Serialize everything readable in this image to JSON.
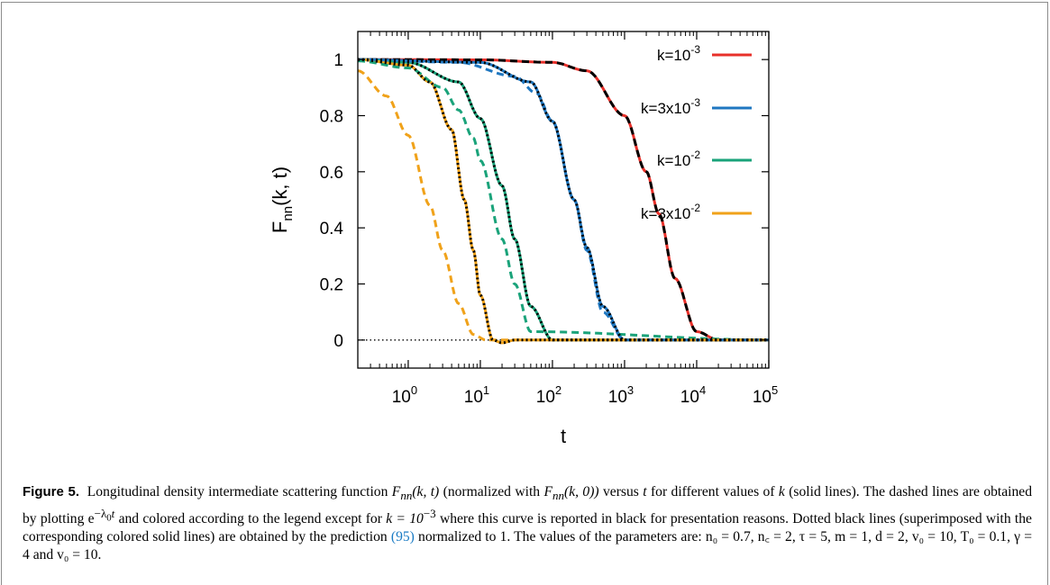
{
  "figure": {
    "label": "Figure 5.",
    "caption": {
      "s1": "Longitudinal density intermediate scattering function",
      "f1": "F",
      "f1sub": "nn",
      "f1args": "(k, t)",
      "s2": "(normalized with",
      "f2": "F",
      "f2sub": "nn",
      "f2args": "(k, 0))",
      "s3": "versus",
      "t": "t",
      "s4": "for different values of",
      "k": "k",
      "s5": "(solid lines). The dashed lines are obtained by plotting e",
      "expsup": "−λ",
      "expsub": "0",
      "expt": "t",
      "s6": "and colored according to the legend except for",
      "keq": "k = 10",
      "keqsup": "−3",
      "s7": "where this curve is reported in black for presentation reasons. Dotted black lines (superimposed with the corresponding colored solid lines) are obtained by the prediction",
      "ref": "(95)",
      "s8": "normalized to 1. The values of the parameters are:",
      "params": "n₀ = 0.7, n꜀ = 2, τ = 5, m = 1, d = 2, v₀ = 10, T₀ = 0.1, γ = 4 and v₀ = 10."
    }
  },
  "chart_data": {
    "type": "line",
    "xlabel": "t",
    "ylabel": "F",
    "ylabel_sub": "nn",
    "ylabel_args": "(k, t)",
    "x_scale": "log",
    "xlim": [
      0.2,
      100000
    ],
    "ylim": [
      -0.1,
      1.1
    ],
    "x_ticks": [
      {
        "value": 1,
        "base": "10",
        "exp": "0"
      },
      {
        "value": 10,
        "base": "10",
        "exp": "1"
      },
      {
        "value": 100,
        "base": "10",
        "exp": "2"
      },
      {
        "value": 1000,
        "base": "10",
        "exp": "3"
      },
      {
        "value": 10000,
        "base": "10",
        "exp": "4"
      },
      {
        "value": 100000,
        "base": "10",
        "exp": "5"
      }
    ],
    "y_ticks": [
      {
        "value": 0,
        "label": "0"
      },
      {
        "value": 0.2,
        "label": "0.2"
      },
      {
        "value": 0.4,
        "label": "0.4"
      },
      {
        "value": 0.6,
        "label": "0.6"
      },
      {
        "value": 0.8,
        "label": "0.8"
      },
      {
        "value": 1,
        "label": "1"
      }
    ],
    "legend_position": "top-right",
    "zero_line": {
      "y": 0,
      "style": "dotted",
      "color": "#000000"
    },
    "series": [
      {
        "name": "k=10",
        "name_sup": "-3",
        "color": "#e8302a",
        "dashed_color": "#000000",
        "x": [
          0.2,
          10,
          100,
          300,
          1000,
          2000,
          3000,
          5000,
          10000,
          20000,
          100000
        ],
        "y": [
          1.0,
          0.999,
          0.99,
          0.96,
          0.8,
          0.6,
          0.45,
          0.22,
          0.03,
          0.0,
          0.0
        ]
      },
      {
        "name": "k=3x10",
        "name_sup": "-3",
        "color": "#1f77c0",
        "dashed_color": "#1f77c0",
        "x": [
          0.2,
          10,
          50,
          100,
          200,
          300,
          500,
          1000,
          2000,
          100000
        ],
        "y": [
          1.0,
          0.99,
          0.92,
          0.78,
          0.5,
          0.33,
          0.12,
          0.0,
          0.0,
          0.0
        ]
      },
      {
        "name": "k=10",
        "name_sup": "-2",
        "color": "#1aa37a",
        "dashed_color": "#1aa37a",
        "x": [
          0.2,
          1,
          5,
          10,
          20,
          30,
          50,
          100,
          200,
          100000
        ],
        "y": [
          1.0,
          0.99,
          0.92,
          0.79,
          0.55,
          0.36,
          0.12,
          0.0,
          0.0,
          0.0
        ]
      },
      {
        "name": "k=3x10",
        "name_sup": "-2",
        "color": "#f0a21a",
        "dashed_color": "#f0a21a",
        "x": [
          0.2,
          1,
          2,
          4,
          6,
          8,
          10,
          15,
          20,
          30,
          100000
        ],
        "y": [
          1.0,
          0.98,
          0.92,
          0.75,
          0.5,
          0.32,
          0.16,
          0.0,
          -0.01,
          0.0,
          0.0
        ]
      }
    ],
    "dashed_curves": [
      {
        "for": "k=10^-3",
        "x": [
          0.2,
          10,
          100,
          300,
          1000,
          2000,
          3000,
          5000,
          10000,
          20000,
          100000
        ],
        "y": [
          1.0,
          0.999,
          0.99,
          0.96,
          0.8,
          0.6,
          0.45,
          0.22,
          0.03,
          0.0,
          0.0
        ]
      },
      {
        "for": "k=3x10^-3",
        "x": [
          0.2,
          5,
          30,
          60,
          100,
          200,
          300,
          500,
          1000,
          100000
        ],
        "y": [
          1.0,
          0.99,
          0.94,
          0.88,
          0.78,
          0.5,
          0.32,
          0.1,
          0.0,
          0.0
        ]
      },
      {
        "for": "k=10^-2",
        "x": [
          0.2,
          1,
          3,
          5,
          8,
          10,
          20,
          30,
          50,
          100000
        ],
        "y": [
          0.995,
          0.97,
          0.9,
          0.82,
          0.72,
          0.64,
          0.36,
          0.2,
          0.03,
          0.0
        ]
      },
      {
        "for": "k=3x10^-2",
        "x": [
          0.2,
          0.5,
          1,
          2,
          3,
          5,
          8,
          12,
          100000
        ],
        "y": [
          0.96,
          0.87,
          0.73,
          0.48,
          0.32,
          0.13,
          0.02,
          0.0,
          0.0
        ]
      }
    ],
    "dotted_curves": [
      {
        "for": "k=3x10^-3",
        "x": [
          0.2,
          10,
          50,
          100,
          200,
          300,
          500,
          1000,
          2000,
          100000
        ],
        "y": [
          1.0,
          0.99,
          0.92,
          0.78,
          0.5,
          0.33,
          0.12,
          0.0,
          0.0,
          0.0
        ]
      },
      {
        "for": "k=10^-2",
        "x": [
          0.2,
          1,
          5,
          10,
          20,
          30,
          50,
          100,
          200,
          100000
        ],
        "y": [
          1.0,
          0.99,
          0.92,
          0.79,
          0.55,
          0.36,
          0.12,
          0.0,
          0.0,
          0.0
        ]
      },
      {
        "for": "k=3x10^-2",
        "x": [
          0.2,
          1,
          2,
          4,
          6,
          8,
          10,
          15,
          20,
          30,
          100000
        ],
        "y": [
          1.0,
          0.98,
          0.92,
          0.75,
          0.5,
          0.32,
          0.16,
          0.0,
          -0.01,
          0.0,
          0.0
        ]
      }
    ]
  }
}
